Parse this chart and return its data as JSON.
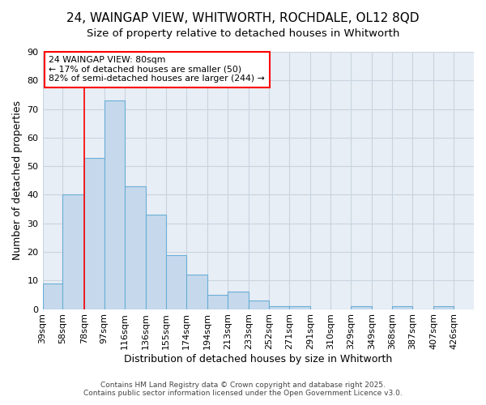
{
  "title_line1": "24, WAINGAP VIEW, WHITWORTH, ROCHDALE, OL12 8QD",
  "title_line2": "Size of property relative to detached houses in Whitworth",
  "xlabel": "Distribution of detached houses by size in Whitworth",
  "ylabel": "Number of detached properties",
  "bins": [
    39,
    58,
    78,
    97,
    116,
    136,
    155,
    174,
    194,
    213,
    233,
    252,
    271,
    291,
    310,
    329,
    349,
    368,
    387,
    407,
    426
  ],
  "counts": [
    9,
    40,
    53,
    73,
    43,
    33,
    19,
    12,
    5,
    6,
    3,
    1,
    1,
    0,
    0,
    1,
    0,
    1,
    0,
    1
  ],
  "bar_facecolor": "#c6d9ec",
  "bar_edgecolor": "#6aaed6",
  "vline_color": "red",
  "vline_x": 78,
  "annotation_text": "24 WAINGAP VIEW: 80sqm\n← 17% of detached houses are smaller (50)\n82% of semi-detached houses are larger (244) →",
  "annotation_box_edgecolor": "red",
  "annotation_box_facecolor": "#ffffff",
  "ylim": [
    0,
    90
  ],
  "yticks": [
    0,
    10,
    20,
    30,
    40,
    50,
    60,
    70,
    80,
    90
  ],
  "background_color": "#ffffff",
  "plot_bg_color": "#e8eef5",
  "grid_color": "#c8d4e0",
  "footer_line1": "Contains HM Land Registry data © Crown copyright and database right 2025.",
  "footer_line2": "Contains public sector information licensed under the Open Government Licence v3.0.",
  "title_fontsize": 11,
  "axis_fontsize": 9,
  "tick_fontsize": 8
}
